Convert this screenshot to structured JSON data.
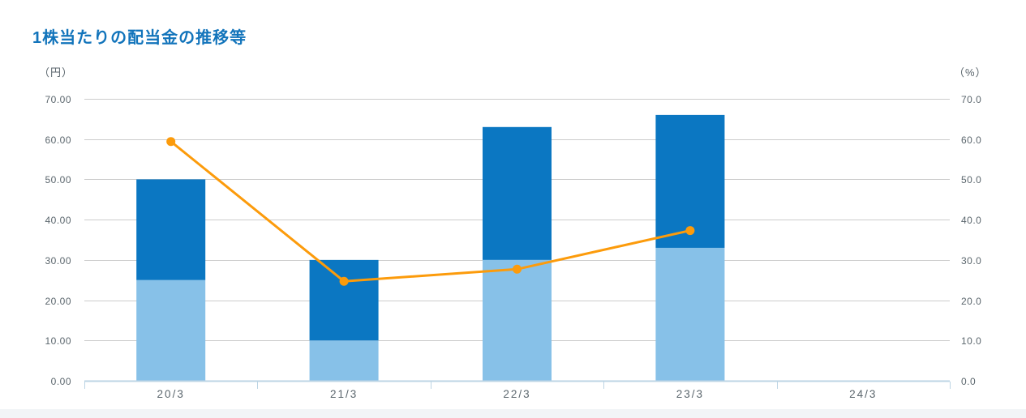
{
  "chart_data": {
    "type": "bar",
    "subtype": "stacked-bars-with-line-overlay",
    "title": "1株当たりの配当金の推移等",
    "categories": [
      "20/3",
      "21/3",
      "22/3",
      "23/3",
      "24/3"
    ],
    "series": [
      {
        "name": "bar-lower-segment",
        "type": "bar",
        "stack": "dividend",
        "color": "#87c1e8",
        "values": [
          25.0,
          10.0,
          30.0,
          33.0,
          null
        ]
      },
      {
        "name": "bar-upper-segment",
        "type": "bar",
        "stack": "dividend",
        "color": "#0b77c2",
        "values": [
          25.0,
          20.0,
          33.0,
          33.0,
          null
        ]
      },
      {
        "name": "percentage-line",
        "type": "line",
        "axis": "right",
        "color": "#fc9b0b",
        "values": [
          59.4,
          24.7,
          27.7,
          37.3,
          null
        ]
      }
    ],
    "bar_totals": [
      50.0,
      30.0,
      63.0,
      66.0,
      null
    ],
    "left_axis": {
      "unit_label": "（円）",
      "ticks": [
        "0.00",
        "10.00",
        "20.00",
        "30.00",
        "40.00",
        "50.00",
        "60.00",
        "70.00"
      ],
      "range": [
        0,
        70
      ]
    },
    "right_axis": {
      "unit_label": "（%）",
      "ticks": [
        "0.0",
        "10.0",
        "20.0",
        "30.0",
        "40.0",
        "50.0",
        "60.0",
        "70.0"
      ],
      "range": [
        0,
        70
      ]
    },
    "grid": true,
    "legend": "none",
    "colors": {
      "title": "#1274bb",
      "grid_line": "#cccccc",
      "axis_line": "#bcd4e4",
      "tick_text": "#5b666d",
      "bar_lower": "#87c1e8",
      "bar_upper": "#0b77c2",
      "line": "#fc9b0b"
    }
  }
}
